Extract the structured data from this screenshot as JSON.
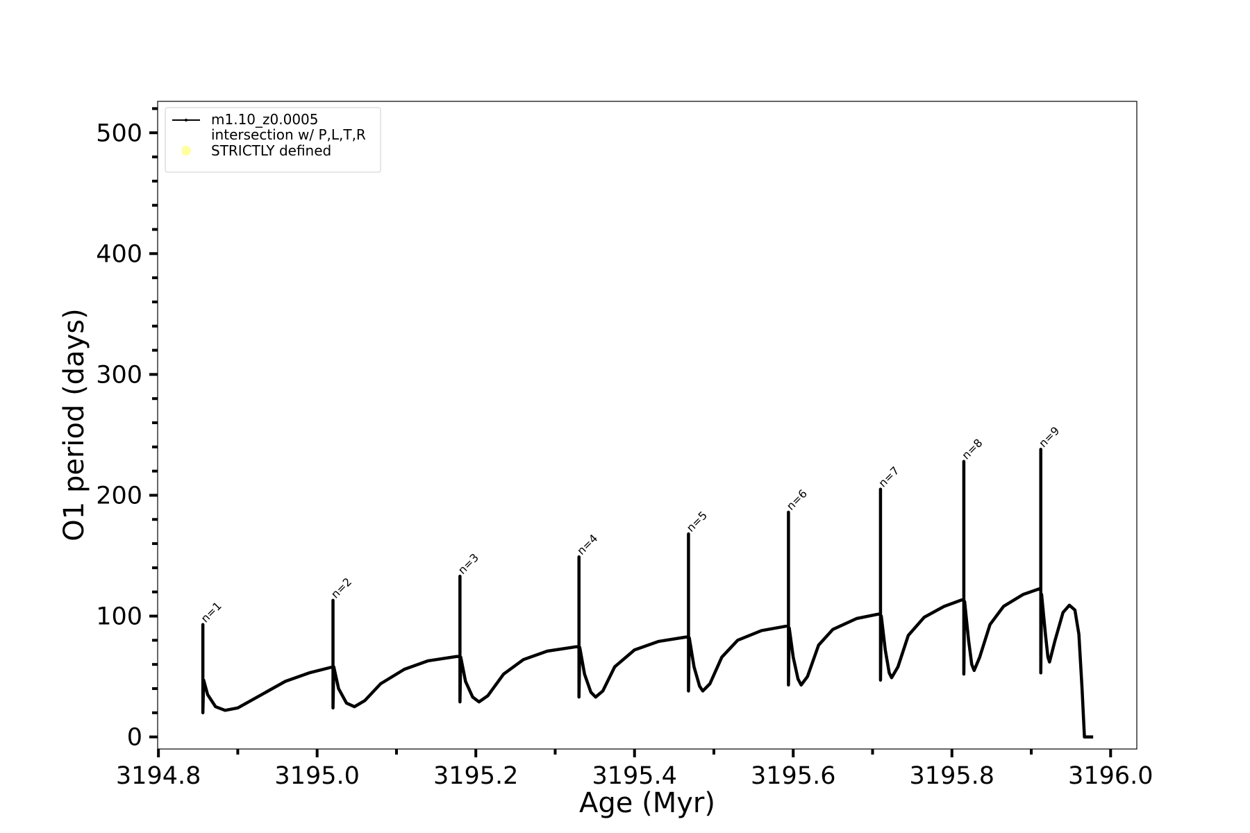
{
  "chart_data": {
    "type": "line",
    "xlabel": "Age (Myr)",
    "ylabel": "O1 period (days)",
    "xlim": [
      3194.799,
      3196.033
    ],
    "ylim": [
      -10,
      526
    ],
    "xticks": [
      {
        "value": 3194.8,
        "label": "3194.8"
      },
      {
        "value": 3195.0,
        "label": "3195.0"
      },
      {
        "value": 3195.2,
        "label": "3195.2"
      },
      {
        "value": 3195.4,
        "label": "3195.4"
      },
      {
        "value": 3195.6,
        "label": "3195.6"
      },
      {
        "value": 3195.8,
        "label": "3195.8"
      },
      {
        "value": 3196.0,
        "label": "3196.0"
      }
    ],
    "xminorticks": [
      3194.9,
      3195.1,
      3195.3,
      3195.5,
      3195.7,
      3195.9
    ],
    "yticks": [
      0,
      100,
      200,
      300,
      400,
      500
    ],
    "yminorticks": [
      20,
      40,
      60,
      80,
      120,
      140,
      160,
      180,
      220,
      240,
      260,
      280,
      320,
      340,
      360,
      380,
      420,
      440,
      460,
      480,
      520
    ],
    "grid": false,
    "legend": "upper left",
    "series": [
      {
        "name": "m1.10_z0.0005",
        "color": "#000000",
        "x": [
          3194.856,
          3194.856,
          3194.856,
          3194.857,
          3194.862,
          3194.872,
          3194.884,
          3194.9,
          3194.93,
          3194.96,
          3194.99,
          3195.02,
          3195.02,
          3195.02,
          3195.021,
          3195.027,
          3195.037,
          3195.047,
          3195.06,
          3195.08,
          3195.11,
          3195.14,
          3195.18,
          3195.18,
          3195.18,
          3195.181,
          3195.187,
          3195.196,
          3195.204,
          3195.215,
          3195.235,
          3195.26,
          3195.29,
          3195.33,
          3195.33,
          3195.33,
          3195.331,
          3195.337,
          3195.345,
          3195.351,
          3195.36,
          3195.375,
          3195.4,
          3195.43,
          3195.468,
          3195.468,
          3195.468,
          3195.469,
          3195.475,
          3195.482,
          3195.486,
          3195.495,
          3195.51,
          3195.53,
          3195.56,
          3195.594,
          3195.594,
          3195.594,
          3195.595,
          3195.6,
          3195.606,
          3195.61,
          3195.618,
          3195.632,
          3195.65,
          3195.68,
          3195.71,
          3195.71,
          3195.71,
          3195.711,
          3195.716,
          3195.721,
          3195.724,
          3195.732,
          3195.745,
          3195.765,
          3195.79,
          3195.815,
          3195.815,
          3195.815,
          3195.816,
          3195.821,
          3195.825,
          3195.828,
          3195.835,
          3195.848,
          3195.865,
          3195.89,
          3195.912,
          3195.912,
          3195.912,
          3195.913,
          3195.918,
          3195.921,
          3195.923,
          3195.93,
          3195.94,
          3195.948,
          3195.955,
          3195.96,
          3195.964,
          3195.967,
          3195.978
        ],
        "values": [
          47,
          93,
          20,
          47,
          35,
          25,
          22,
          24,
          35,
          46,
          53,
          58,
          113,
          24,
          58,
          40,
          28,
          25,
          30,
          44,
          56,
          63,
          67,
          133,
          29,
          66,
          46,
          33,
          29,
          34,
          52,
          64,
          71,
          75,
          149,
          33,
          74,
          52,
          37,
          33,
          38,
          58,
          72,
          79,
          83,
          168,
          38,
          82,
          58,
          42,
          38,
          44,
          66,
          80,
          88,
          92,
          186,
          43,
          90,
          66,
          48,
          43,
          50,
          76,
          89,
          98,
          102,
          205,
          47,
          100,
          72,
          53,
          49,
          58,
          84,
          99,
          108,
          114,
          228,
          52,
          112,
          80,
          60,
          55,
          66,
          93,
          108,
          118,
          123,
          238,
          53,
          118,
          84,
          66,
          62,
          80,
          103,
          109,
          105,
          85,
          40,
          0,
          0
        ]
      },
      {
        "name": "intersection w/ P,L,T,R\nSTRICTLY defined",
        "color": "#ffffa0",
        "x": [],
        "values": []
      }
    ],
    "annotations": [
      {
        "text": "n=1",
        "x": 3194.856,
        "y": 93
      },
      {
        "text": "n=2",
        "x": 3195.02,
        "y": 113
      },
      {
        "text": "n=3",
        "x": 3195.18,
        "y": 133
      },
      {
        "text": "n=4",
        "x": 3195.33,
        "y": 149
      },
      {
        "text": "n=5",
        "x": 3195.468,
        "y": 168
      },
      {
        "text": "n=6",
        "x": 3195.594,
        "y": 186
      },
      {
        "text": "n=7",
        "x": 3195.71,
        "y": 205
      },
      {
        "text": "n=8",
        "x": 3195.815,
        "y": 228
      },
      {
        "text": "n=9",
        "x": 3195.912,
        "y": 238
      }
    ]
  }
}
